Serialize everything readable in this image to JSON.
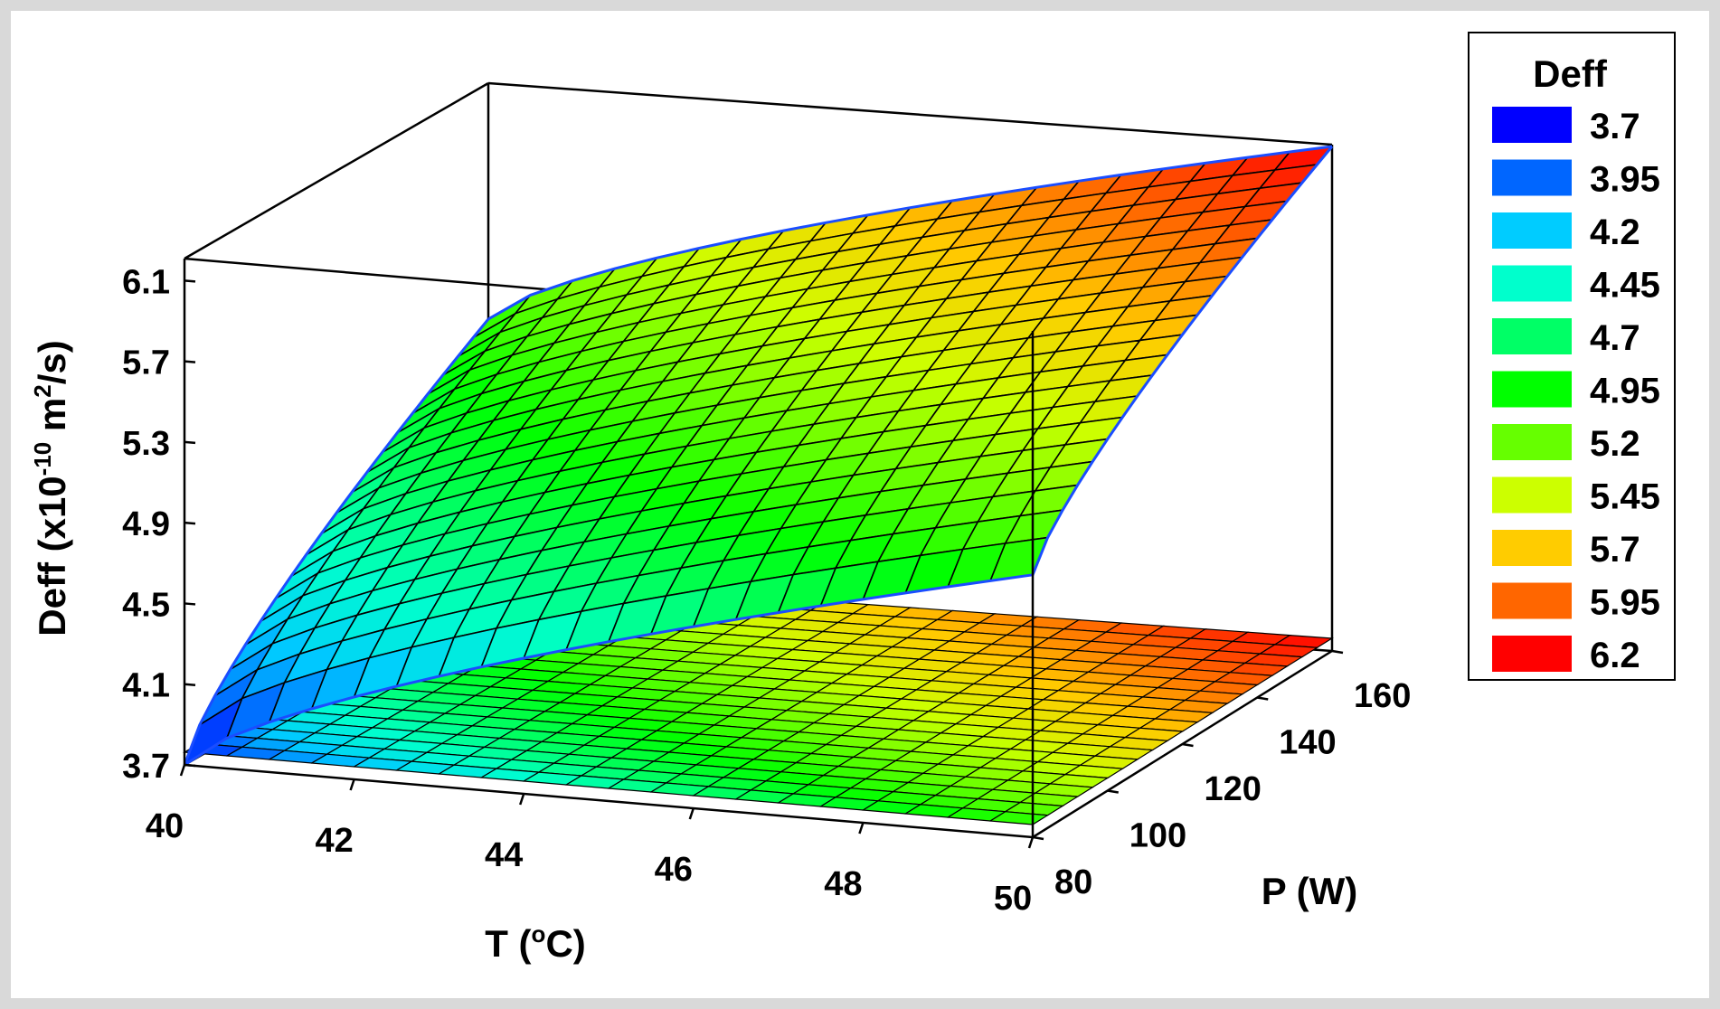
{
  "chart_data": {
    "type": "surface3d",
    "title": "",
    "xlabel": "T (°C)",
    "ylabel": "P (W)",
    "zlabel": "Deff (x10⁻¹⁰ m²/s)",
    "zlabel_parts": {
      "pre": "Deff (x10",
      "sup1": "-10",
      "mid": " m",
      "sup2": "2",
      "post": "/s)"
    },
    "xlabel_parts": {
      "pre": "T (",
      "sup": "o",
      "post": "C)"
    },
    "x_ticks": [
      "40",
      "42",
      "44",
      "46",
      "48",
      "50"
    ],
    "y_ticks": [
      "80",
      "100",
      "120",
      "140",
      "160"
    ],
    "z_ticks": [
      "3.7",
      "4.1",
      "4.5",
      "4.9",
      "5.3",
      "5.7",
      "6.1"
    ],
    "xlim": [
      40,
      50
    ],
    "ylim": [
      80,
      160
    ],
    "zlim": [
      3.7,
      6.2
    ],
    "surface_corners": [
      {
        "T": 40,
        "P": 80,
        "Deff": 3.7
      },
      {
        "T": 40,
        "P": 160,
        "Deff": 5.04
      },
      {
        "T": 50,
        "P": 80,
        "Deff": 5.0
      },
      {
        "T": 50,
        "P": 160,
        "Deff": 6.2
      }
    ],
    "grid_resolution": 20,
    "has_floor_contour": true,
    "legend": {
      "title": "Deff",
      "placement": "right",
      "entries": [
        {
          "label": "3.7",
          "color": "#0000ff"
        },
        {
          "label": "3.95",
          "color": "#0066ff"
        },
        {
          "label": "4.2",
          "color": "#00ccff"
        },
        {
          "label": "4.45",
          "color": "#00ffcc"
        },
        {
          "label": "4.7",
          "color": "#00ff66"
        },
        {
          "label": "4.95",
          "color": "#00ff00"
        },
        {
          "label": "5.2",
          "color": "#66ff00"
        },
        {
          "label": "5.45",
          "color": "#ccff00"
        },
        {
          "label": "5.7",
          "color": "#ffcc00"
        },
        {
          "label": "5.95",
          "color": "#ff6600"
        },
        {
          "label": "6.2",
          "color": "#ff0000"
        }
      ]
    },
    "colors": {
      "mesh_line": "#000000",
      "surface_edge": "#1a4dff",
      "box": "#000000"
    }
  }
}
